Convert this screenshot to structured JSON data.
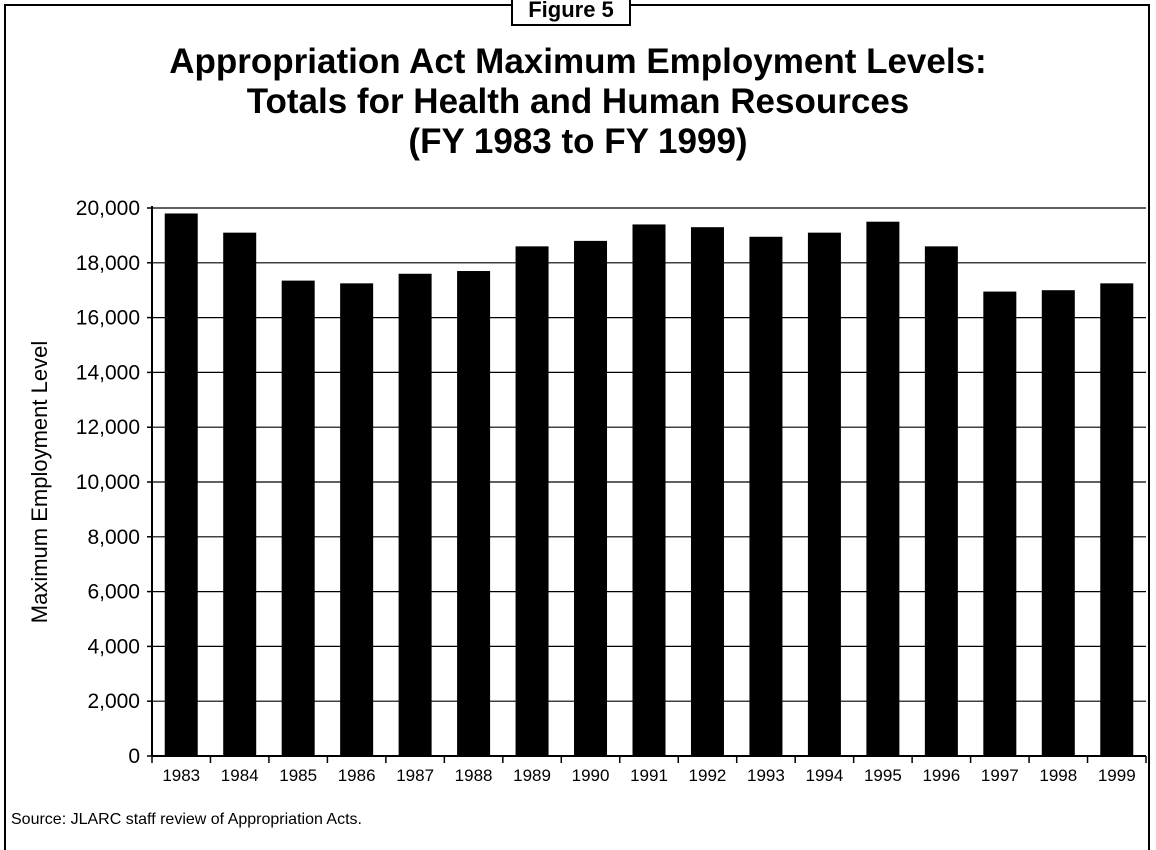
{
  "figure_label": "Figure 5",
  "title_lines": [
    "Appropriation Act Maximum Employment Levels:",
    "Totals for Health and Human Resources",
    "(FY 1983 to FY 1999)"
  ],
  "source": "Source:  JLARC staff review of Appropriation Acts.",
  "chart_data": {
    "type": "bar",
    "title": "Appropriation Act Maximum Employment Levels: Totals for Health and Human Resources (FY 1983 to FY 1999)",
    "xlabel": "",
    "ylabel": "Maximum Employment Level",
    "ylim": [
      0,
      20000
    ],
    "yticks": [
      0,
      2000,
      4000,
      6000,
      8000,
      10000,
      12000,
      14000,
      16000,
      18000,
      20000
    ],
    "ytick_labels": [
      "0",
      "2,000",
      "4,000",
      "6,000",
      "8,000",
      "10,000",
      "12,000",
      "14,000",
      "16,000",
      "18,000",
      "20,000"
    ],
    "grid": true,
    "categories": [
      "1983",
      "1984",
      "1985",
      "1986",
      "1987",
      "1988",
      "1989",
      "1990",
      "1991",
      "1992",
      "1993",
      "1994",
      "1995",
      "1996",
      "1997",
      "1998",
      "1999"
    ],
    "values": [
      19800,
      19100,
      17350,
      17250,
      17600,
      17700,
      18600,
      18800,
      19400,
      19300,
      18950,
      19100,
      19500,
      18600,
      16950,
      17000,
      17250
    ],
    "bar_color": "#000000"
  }
}
